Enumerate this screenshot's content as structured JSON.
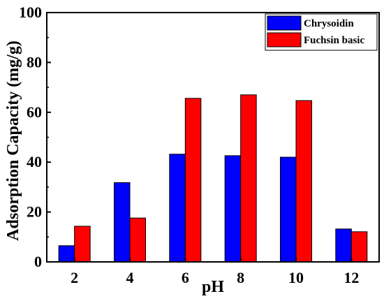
{
  "chart_data": {
    "type": "bar",
    "categories": [
      "2",
      "4",
      "6",
      "8",
      "10",
      "12"
    ],
    "series": [
      {
        "name": "Chrysoidin",
        "color": "#0000ff",
        "values": [
          6.5,
          31.8,
          43.2,
          42.6,
          42.0,
          13.2
        ]
      },
      {
        "name": "Fuchsin basic",
        "color": "#ff0000",
        "values": [
          14.3,
          17.6,
          65.6,
          67.0,
          64.7,
          12.1
        ]
      }
    ],
    "xlabel": "pH",
    "ylabel": "Adsorption Capacity (mg/g)",
    "ylim": [
      0,
      100
    ],
    "yticks": [
      "0",
      "20",
      "40",
      "60",
      "80",
      "100"
    ],
    "grid": false,
    "legend_position": "top-right"
  }
}
